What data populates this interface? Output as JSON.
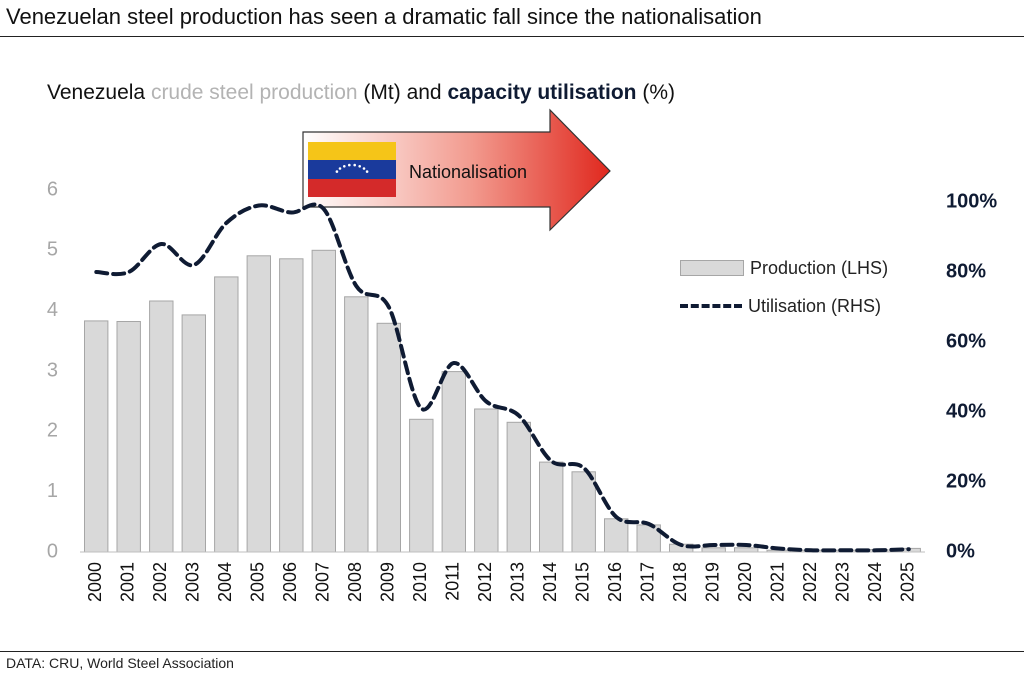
{
  "headline": "Venezuelan steel production has seen a dramatic fall since the nationalisation",
  "subtitle": {
    "country": "Venezuela",
    "lhs_metric": "crude steel production",
    "lhs_unit": "(Mt) and",
    "rhs_metric": "capacity utilisation",
    "rhs_unit": "(%)"
  },
  "annotation": {
    "label": "Nationalisation",
    "flag_icon": "venezuela-flag-icon"
  },
  "legend": {
    "production": "Production (LHS)",
    "utilisation": "Utilisation (RHS)"
  },
  "source": "DATA: CRU, World Steel Association",
  "colors": {
    "bar_fill": "#d9d9d9",
    "bar_stroke": "#a6a6a6",
    "line": "#0f1b33",
    "lhs_tick": "#a6a6a6",
    "rhs_tick": "#0f1b33"
  },
  "chart_data": {
    "type": "bar",
    "categories": [
      "2000",
      "2001",
      "2002",
      "2003",
      "2004",
      "2005",
      "2006",
      "2007",
      "2008",
      "2009",
      "2010",
      "2011",
      "2012",
      "2013",
      "2014",
      "2015",
      "2016",
      "2017",
      "2018",
      "2019",
      "2020",
      "2021",
      "2022",
      "2023",
      "2024",
      "2025"
    ],
    "series": [
      {
        "name": "Production (LHS)",
        "type": "bar",
        "axis": "left",
        "values": [
          3.83,
          3.82,
          4.16,
          3.93,
          4.56,
          4.91,
          4.86,
          5.0,
          4.23,
          3.79,
          2.2,
          2.99,
          2.37,
          2.15,
          1.49,
          1.33,
          0.55,
          0.45,
          0.13,
          0.07,
          0.07,
          0.03,
          0.03,
          0.03,
          0.04,
          0.06
        ]
      },
      {
        "name": "Utilisation (RHS)",
        "type": "line",
        "style": "dashed",
        "axis": "right",
        "values": [
          80,
          80,
          88,
          82,
          94,
          99,
          97,
          98,
          76,
          70,
          41,
          54,
          43,
          39,
          26,
          24,
          10,
          8,
          2,
          2,
          2,
          1,
          0.5,
          0.5,
          0.5,
          0.8
        ]
      }
    ],
    "y_left": {
      "ylim": [
        0,
        6
      ],
      "ticks": [
        "0",
        "1",
        "2",
        "3",
        "4",
        "5",
        "6"
      ]
    },
    "y_right": {
      "ylim": [
        0,
        100
      ],
      "ticks": [
        "0%",
        "20%",
        "40%",
        "60%",
        "80%",
        "100%"
      ]
    },
    "grid": false,
    "legend_position": "right"
  }
}
